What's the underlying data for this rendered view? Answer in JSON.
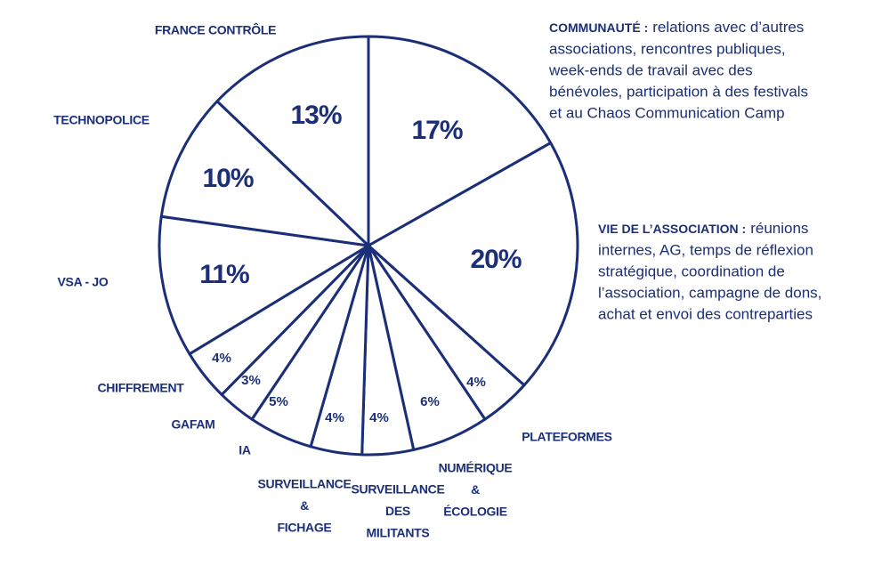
{
  "chart_data": {
    "type": "pie",
    "color": "#1b2f78",
    "categories": [
      null,
      null,
      [
        "PLATEFORMES"
      ],
      [
        "NUMÉRIQUE",
        "&",
        "ÉCOLOGIE"
      ],
      [
        "SURVEILLANCE",
        "DES",
        "MILITANTS"
      ],
      [
        "SURVEILLANCE",
        "&",
        "FICHAGE"
      ],
      [
        "IA"
      ],
      [
        "GAFAM"
      ],
      [
        "CHIFFREMENT"
      ],
      [
        "VSA - JO"
      ],
      [
        "TECHNOPOLICE"
      ],
      [
        "FRANCE CONTRÔLE"
      ]
    ],
    "values": [
      17,
      20,
      4,
      6,
      4,
      4,
      5,
      3,
      4,
      11,
      10,
      13
    ],
    "value_labels": [
      "17%",
      "20%",
      "4%",
      "6%",
      "4%",
      "4%",
      "5%",
      "3%",
      "4%",
      "11%",
      "10%",
      "13%"
    ],
    "annotations": [
      {
        "label": "COMMUNAUTÉ :",
        "lines": [
          "relations avec d’autres",
          "associations, rencontres publiques,",
          "week-ends de travail avec des",
          "bénévoles, participation à des festivals",
          "et au Chaos Communication Camp"
        ]
      },
      {
        "label": "VIE DE L’ASSOCIATION :",
        "lines": [
          "réunions",
          "internes, AG, temps de réflexion",
          "stratégique, coordination de",
          "l’association, campagne de dons,",
          "achat et envoi des contreparties"
        ]
      }
    ]
  }
}
